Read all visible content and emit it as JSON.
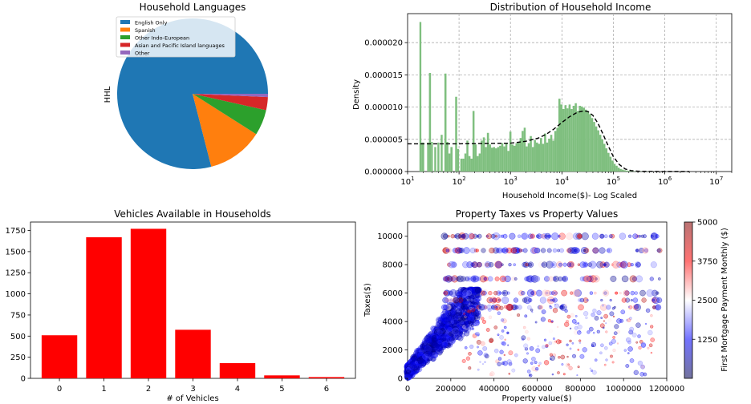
{
  "chart_data": [
    {
      "type": "pie",
      "title": "Household Languages",
      "ylabel": "HHL",
      "labels": [
        "English Only",
        "Spanish",
        "Other Indo-European",
        "Asian and Pacific Island languages",
        "Other"
      ],
      "values": [
        0.79,
        0.12,
        0.055,
        0.028,
        0.007
      ],
      "colors": [
        "#1f77b4",
        "#ff7f0e",
        "#2ca02c",
        "#d62728",
        "#9467bd"
      ],
      "legend": "top-left"
    },
    {
      "type": "bar",
      "title": "Distribution of Household Income",
      "xlabel": "Household Income($)- Log Scaled",
      "ylabel": "Density",
      "xscale": "log",
      "xlim": [
        10,
        20000000
      ],
      "ylim": [
        0,
        2.45e-05
      ],
      "xticks": [
        "10^1",
        "10^2",
        "10^3",
        "10^4",
        "10^5",
        "10^6",
        "10^7"
      ],
      "yticks": [
        "0.000000",
        "0.000005",
        "0.000010",
        "0.000015",
        "0.000020"
      ],
      "grid": true,
      "bar_color": "#7fbf7f",
      "histogram": {
        "bins": [
          [
            17,
            18.5,
            2.32e-05
          ],
          [
            18.5,
            21,
            4.5e-06
          ],
          [
            24,
            26,
            4.5e-06
          ],
          [
            26,
            28.5,
            1.53e-05
          ],
          [
            28.5,
            31,
            4.6e-06
          ],
          [
            33,
            36,
            3.8e-06
          ],
          [
            38,
            41.5,
            4.5e-06
          ],
          [
            44,
            48,
            5.7e-06
          ],
          [
            52,
            57,
            1.52e-05
          ],
          [
            57,
            62,
            4.6e-06
          ],
          [
            62,
            68,
            2.8e-06
          ],
          [
            68,
            75,
            3.8e-06
          ],
          [
            84,
            92,
            1.16e-05
          ],
          [
            92,
            100,
            3.5e-06
          ],
          [
            106,
            116,
            2e-06
          ],
          [
            116,
            127,
            2e-06
          ],
          [
            127,
            139,
            2.8e-06
          ],
          [
            139,
            152,
            4.8e-06
          ],
          [
            152,
            167,
            2.4e-06
          ],
          [
            167,
            183,
            2e-06
          ],
          [
            183,
            200,
            9.4e-06
          ],
          [
            200,
            220,
            4.2e-06
          ],
          [
            220,
            241,
            2.4e-06
          ],
          [
            241,
            264,
            2.8e-06
          ],
          [
            264,
            290,
            4.8e-06
          ],
          [
            290,
            318,
            5.3e-06
          ],
          [
            318,
            348,
            3.8e-06
          ],
          [
            348,
            382,
            6e-06
          ],
          [
            382,
            418,
            4.2e-06
          ],
          [
            418,
            458,
            3.7e-06
          ],
          [
            458,
            502,
            3.8e-06
          ],
          [
            502,
            550,
            3.6e-06
          ],
          [
            550,
            603,
            3.8e-06
          ],
          [
            603,
            660,
            4e-06
          ],
          [
            660,
            724,
            4.4e-06
          ],
          [
            724,
            793,
            3.9e-06
          ],
          [
            793,
            869,
            4.4e-06
          ],
          [
            869,
            952,
            3.2e-06
          ],
          [
            952,
            1043,
            6.2e-06
          ],
          [
            1043,
            1143,
            4.2e-06
          ],
          [
            1143,
            1252,
            4e-06
          ],
          [
            1252,
            1372,
            4.4e-06
          ],
          [
            1372,
            1503,
            4.6e-06
          ],
          [
            1503,
            1647,
            5.2e-06
          ],
          [
            1647,
            1805,
            6.3e-06
          ],
          [
            1805,
            1978,
            6.8e-06
          ],
          [
            1978,
            2167,
            3.9e-06
          ],
          [
            2167,
            2375,
            4.4e-06
          ],
          [
            2375,
            2602,
            5.5e-06
          ],
          [
            2602,
            2851,
            3.8e-06
          ],
          [
            2851,
            3124,
            4.9e-06
          ],
          [
            3124,
            3423,
            4.5e-06
          ],
          [
            3423,
            3751,
            4.3e-06
          ],
          [
            3751,
            4110,
            5.2e-06
          ],
          [
            4110,
            4504,
            4.3e-06
          ],
          [
            4504,
            4935,
            5.9e-06
          ],
          [
            4935,
            5408,
            4.5e-06
          ],
          [
            5408,
            5925,
            5.1e-06
          ],
          [
            5925,
            6493,
            5.7e-06
          ],
          [
            6493,
            7114,
            4.8e-06
          ],
          [
            7114,
            7795,
            6.3e-06
          ],
          [
            7795,
            8542,
            6.8e-06
          ],
          [
            8542,
            9360,
            1.13e-05
          ],
          [
            9360,
            10256,
            1.04e-05
          ],
          [
            10256,
            11238,
            9.7e-06
          ],
          [
            11238,
            12314,
            1.03e-05
          ],
          [
            12314,
            13493,
            9.8e-06
          ],
          [
            13493,
            14785,
            1.04e-05
          ],
          [
            14785,
            16201,
            9.7e-06
          ],
          [
            16201,
            17752,
            1.02e-05
          ],
          [
            17752,
            19452,
            1.06e-05
          ],
          [
            19452,
            21314,
            9.4e-06
          ],
          [
            21314,
            23355,
            1.02e-05
          ],
          [
            23355,
            25592,
            1.01e-05
          ],
          [
            25592,
            28042,
            9.9e-06
          ],
          [
            28042,
            30727,
            9.6e-06
          ],
          [
            30727,
            33670,
            9.4e-06
          ],
          [
            33670,
            36894,
            8.9e-06
          ],
          [
            36894,
            40427,
            8.3e-06
          ],
          [
            40427,
            44298,
            7.7e-06
          ],
          [
            44298,
            48540,
            7e-06
          ],
          [
            48540,
            53188,
            6.4e-06
          ],
          [
            53188,
            58281,
            5.7e-06
          ],
          [
            58281,
            63862,
            5e-06
          ],
          [
            63862,
            69977,
            4.3e-06
          ],
          [
            69977,
            76678,
            3.6e-06
          ],
          [
            76678,
            84020,
            2.9e-06
          ],
          [
            84020,
            92066,
            2.3e-06
          ],
          [
            92066,
            100882,
            1.7e-06
          ],
          [
            100882,
            110542,
            1.2e-06
          ],
          [
            110542,
            121128,
            9e-07
          ],
          [
            121128,
            132727,
            6e-07
          ],
          [
            132727,
            145437,
            4e-07
          ],
          [
            145437,
            159364,
            3e-07
          ],
          [
            159364,
            174624,
            2e-07
          ],
          [
            174624,
            191346,
            1.5e-07
          ],
          [
            191346,
            209669,
            1e-07
          ],
          [
            209669,
            229747,
            8e-08
          ],
          [
            229747,
            251746,
            6e-08
          ],
          [
            251746,
            275853,
            5e-08
          ],
          [
            275853,
            302268,
            4e-08
          ],
          [
            302268,
            331212,
            4e-08
          ],
          [
            331212,
            362928,
            3e-08
          ],
          [
            362928,
            397681,
            3e-08
          ],
          [
            397681,
            435762,
            2e-08
          ],
          [
            435762,
            477489,
            2e-08
          ],
          [
            477489,
            523211,
            2e-08
          ],
          [
            523211,
            573312,
            2e-08
          ],
          [
            573312,
            628210,
            1e-08
          ],
          [
            628210,
            688364,
            1e-08
          ],
          [
            688364,
            754280,
            1e-08
          ]
        ]
      },
      "kde_curve": {
        "x": [
          10,
          100,
          1000,
          2000,
          3500,
          5000,
          7000,
          10000,
          14000,
          20000,
          27000,
          32000,
          40000,
          50000,
          63000,
          80000,
          100000,
          130000,
          170000,
          220000,
          300000,
          500000,
          1000000,
          3000000
        ],
        "y": [
          4.3e-06,
          4.3e-06,
          4.4e-06,
          4.7e-06,
          5.2e-06,
          5.8e-06,
          6.6e-06,
          7.6e-06,
          8.5e-06,
          9.2e-06,
          9.4e-06,
          9.3e-06,
          8.7e-06,
          7.5e-06,
          5.8e-06,
          3.9e-06,
          2.3e-06,
          1.1e-06,
          4e-07,
          1.5e-07,
          5e-08,
          2e-08,
          5e-09,
          0.0
        ],
        "style": "dashed",
        "color": "#000000"
      }
    },
    {
      "type": "bar",
      "title": "Vehicles Available in Households",
      "xlabel": "# of Vehicles",
      "ylabel": "",
      "categories": [
        "0",
        "1",
        "2",
        "3",
        "4",
        "5",
        "6"
      ],
      "values": [
        510,
        1670,
        1770,
        575,
        180,
        35,
        15
      ],
      "ylim": [
        0,
        1850
      ],
      "yticks": [
        0,
        250,
        500,
        750,
        1000,
        1250,
        1500,
        1750
      ],
      "bar_color": "#ff0000"
    },
    {
      "type": "scatter",
      "title": "Property Taxes vs Property Values",
      "xlabel": "Property value($)",
      "ylabel": "Taxes($)",
      "xlim": [
        0,
        1200000
      ],
      "ylim": [
        0,
        11000
      ],
      "xticks": [
        0,
        200000,
        400000,
        600000,
        800000,
        1000000,
        1200000
      ],
      "yticks": [
        0,
        2000,
        4000,
        6000,
        8000,
        10000
      ],
      "colorbar": {
        "label": "First Mortgage Payment Monthly ($)",
        "min": 0,
        "max": 5000,
        "ticks": [
          1250,
          2500,
          3750,
          5000
        ],
        "colormap": "seismic"
      },
      "marker_alpha": 0.35
    }
  ]
}
